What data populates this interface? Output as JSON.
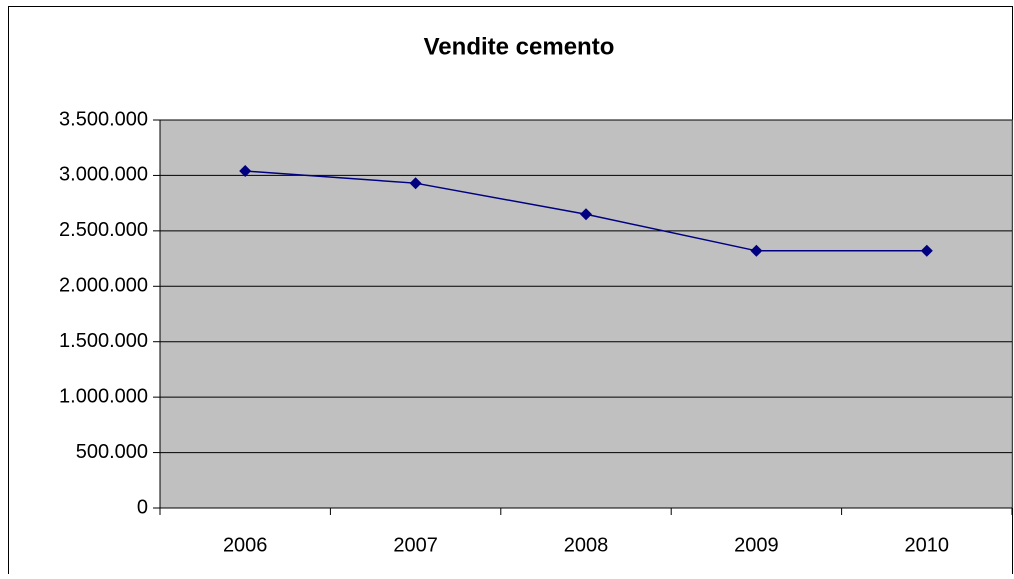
{
  "chart_data": {
    "type": "line",
    "title": "Vendite cemento",
    "categories": [
      "2006",
      "2007",
      "2008",
      "2009",
      "2010"
    ],
    "values": [
      3040000,
      2930000,
      2650000,
      2320000,
      2320000
    ],
    "color": "#000080",
    "ylim": [
      0,
      3500000
    ],
    "yticks": [
      0,
      {
        "value": 500000,
        "label": "500.000"
      },
      {
        "value": 1000000,
        "label": "1.000.000"
      },
      {
        "value": 1500000,
        "label": "1.500.000"
      },
      {
        "value": 2000000,
        "label": "2.000.000"
      },
      {
        "value": 2500000,
        "label": "2.500.000"
      },
      {
        "value": 3000000,
        "label": "3.000.000"
      },
      {
        "value": 3500000,
        "label": "3.500.000"
      }
    ],
    "grid": true
  }
}
